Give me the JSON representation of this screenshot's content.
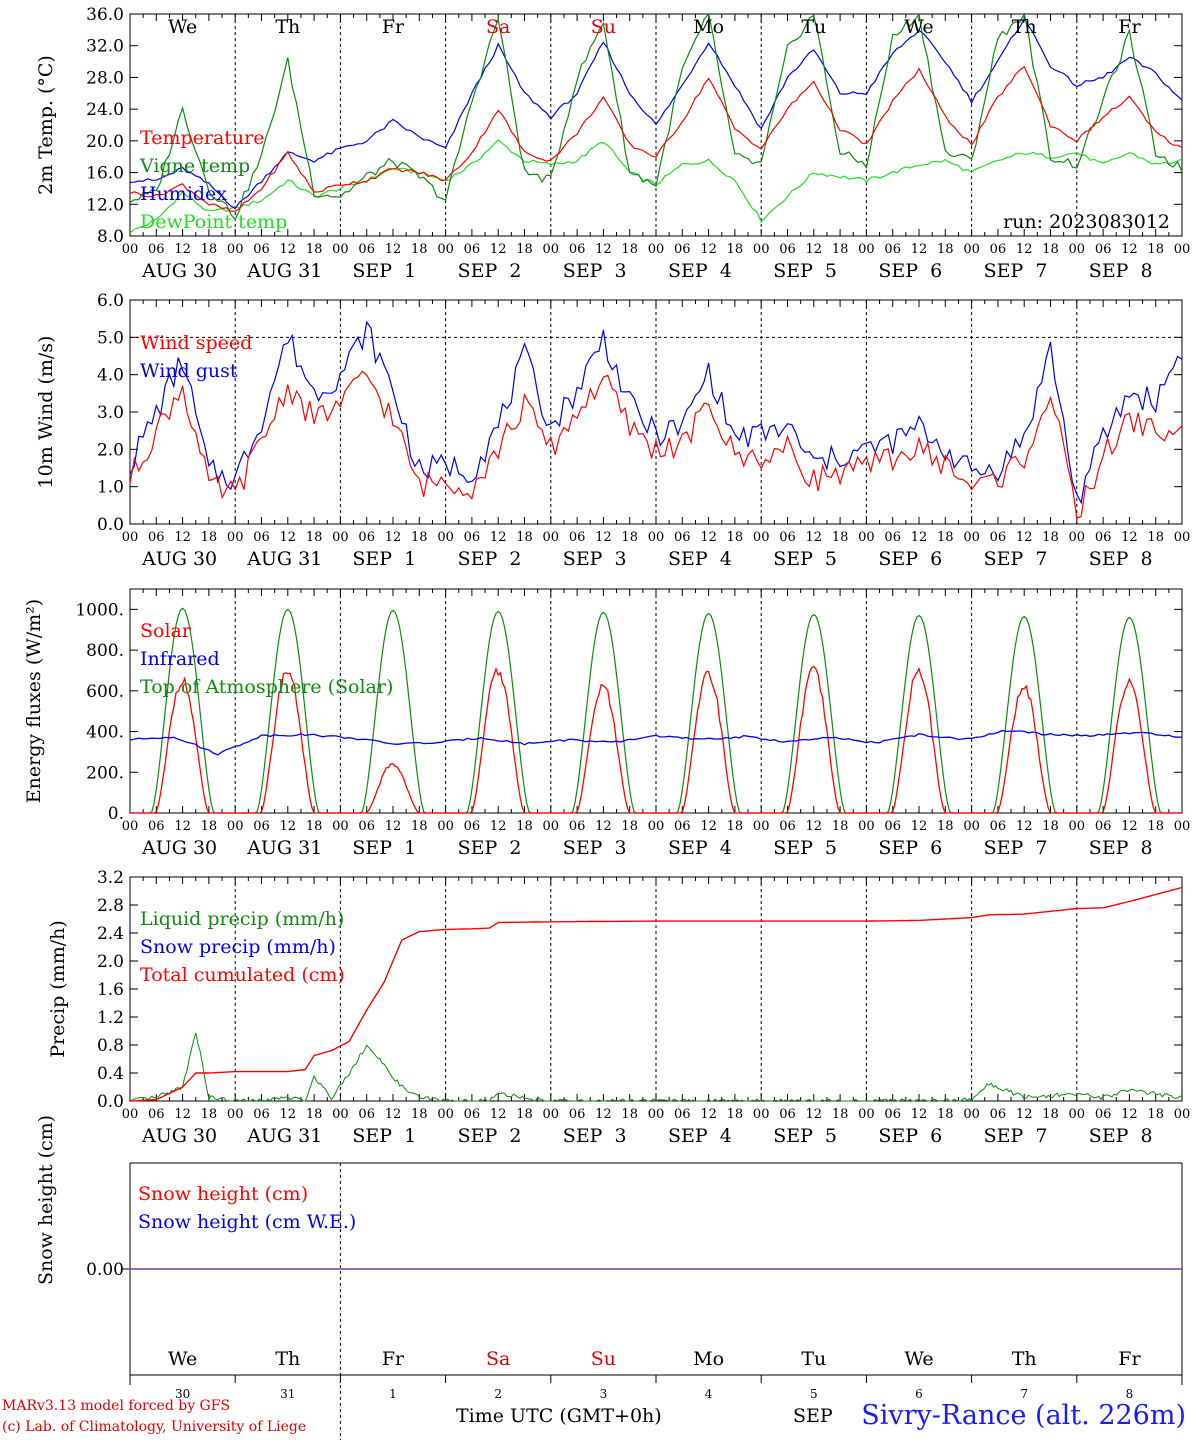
{
  "run_label": "run: 2023083012",
  "weekdays": [
    {
      "label": "We",
      "color": "#000000"
    },
    {
      "label": "Th",
      "color": "#000000"
    },
    {
      "label": "Fr",
      "color": "#000000"
    },
    {
      "label": "Sa",
      "color": "#e00000"
    },
    {
      "label": "Su",
      "color": "#e00000"
    },
    {
      "label": "Mo",
      "color": "#000000"
    },
    {
      "label": "Tu",
      "color": "#000000"
    },
    {
      "label": "We",
      "color": "#000000"
    },
    {
      "label": "Th",
      "color": "#000000"
    },
    {
      "label": "Fr",
      "color": "#000000"
    }
  ],
  "day_numbers": [
    "30",
    "31",
    "1",
    "2",
    "3",
    "4",
    "5",
    "6",
    "7",
    "8"
  ],
  "date_labels": [
    "AUG 30",
    "AUG 31",
    "SEP  1",
    "SEP  2",
    "SEP  3",
    "SEP  4",
    "SEP  5",
    "SEP  6",
    "SEP  7",
    "SEP  8"
  ],
  "hour_ticks": [
    "00",
    "06",
    "12",
    "18"
  ],
  "footer": {
    "model": "MARv3.13 model forced by GFS",
    "copyright": "(c) Lab. of Climatology, University of Liege",
    "xlabel": "Time UTC (GMT+0h)",
    "month_label": "SEP",
    "site": "Sivry-Rance (alt. 226m)"
  },
  "colors": {
    "red": "#ff0000",
    "blue": "#0000ee",
    "dark_green": "#118811",
    "light_green": "#22dd22",
    "purple": "#7a3a9a"
  },
  "chart_data": [
    {
      "type": "line",
      "ylabel": "2m Temp. (°C)",
      "ylim": [
        8,
        36
      ],
      "yticks": [
        "8.0",
        "12.0",
        "16.0",
        "20.0",
        "24.0",
        "28.0",
        "32.0",
        "36.0"
      ],
      "x_hours": [
        0,
        6,
        12,
        18,
        24,
        30,
        36,
        42,
        48,
        54,
        60,
        66,
        72,
        78,
        84,
        90,
        96,
        102,
        108,
        114,
        120,
        126,
        132,
        138,
        144,
        150,
        156,
        162,
        168,
        174,
        180,
        186,
        192,
        198,
        204,
        210,
        216,
        222,
        228,
        234,
        240
      ],
      "series": [
        {
          "name": "Temperature",
          "color": "red",
          "values": [
            13.5,
            13.0,
            14.5,
            12.0,
            11.0,
            14.0,
            18.5,
            13.5,
            14.5,
            15.0,
            16.5,
            16.0,
            15.0,
            18.5,
            24.0,
            18.5,
            17.5,
            21.0,
            25.5,
            19.5,
            18.0,
            22.5,
            28.0,
            21.5,
            19.0,
            24.0,
            27.5,
            21.5,
            19.5,
            25.0,
            29.0,
            23.0,
            19.5,
            25.5,
            29.5,
            22.0,
            20.0,
            23.0,
            25.5,
            21.0,
            19.0
          ]
        },
        {
          "name": "Vigne temp",
          "color": "dark_green",
          "values": [
            12.5,
            13.5,
            24.0,
            14.0,
            10.5,
            18.0,
            30.0,
            13.5,
            13.0,
            15.5,
            17.5,
            15.5,
            12.5,
            25.0,
            35.5,
            16.0,
            15.0,
            28.0,
            35.0,
            16.0,
            14.5,
            29.0,
            36.0,
            18.0,
            17.0,
            31.5,
            36.0,
            18.5,
            17.0,
            33.0,
            36.0,
            18.5,
            17.5,
            33.0,
            36.0,
            18.0,
            17.0,
            25.0,
            33.5,
            18.5,
            16.5
          ]
        },
        {
          "name": "Humidex",
          "color": "blue",
          "values": [
            15.0,
            15.0,
            16.5,
            14.5,
            11.5,
            15.0,
            18.5,
            17.5,
            19.0,
            20.0,
            22.5,
            20.5,
            19.0,
            26.0,
            32.0,
            26.0,
            23.0,
            26.0,
            32.5,
            26.0,
            22.0,
            27.0,
            32.5,
            27.0,
            21.5,
            28.0,
            31.5,
            26.0,
            26.0,
            31.0,
            34.0,
            30.0,
            25.0,
            30.0,
            35.5,
            29.5,
            27.0,
            28.0,
            30.5,
            28.5,
            25.0
          ]
        },
        {
          "name": "DewPoint temp",
          "color": "light_green",
          "values": [
            8.5,
            10.0,
            13.5,
            11.0,
            11.5,
            12.5,
            15.0,
            13.0,
            14.0,
            15.0,
            16.5,
            16.0,
            15.0,
            17.0,
            20.0,
            17.5,
            17.0,
            17.5,
            20.0,
            16.0,
            14.5,
            17.0,
            17.5,
            15.0,
            10.0,
            13.0,
            16.0,
            15.5,
            15.0,
            16.0,
            17.0,
            17.5,
            16.0,
            17.5,
            18.5,
            18.0,
            18.5,
            17.0,
            18.5,
            17.0,
            17.5
          ]
        }
      ]
    },
    {
      "type": "line",
      "ylabel": "10m Wind (m/s)",
      "ylim": [
        0,
        6
      ],
      "yticks": [
        "0.0",
        "1.0",
        "2.0",
        "3.0",
        "4.0",
        "5.0",
        "6.0"
      ],
      "x_hours": [
        0,
        6,
        12,
        18,
        24,
        30,
        36,
        42,
        48,
        54,
        60,
        66,
        72,
        78,
        84,
        90,
        96,
        102,
        108,
        114,
        120,
        126,
        132,
        138,
        144,
        150,
        156,
        162,
        168,
        174,
        180,
        186,
        192,
        198,
        204,
        210,
        216,
        222,
        228,
        234,
        240
      ],
      "series": [
        {
          "name": "Wind speed",
          "color": "red",
          "values": [
            1.2,
            2.5,
            3.7,
            1.0,
            0.8,
            2.2,
            3.7,
            2.8,
            3.2,
            4.0,
            2.8,
            1.0,
            1.2,
            1.0,
            2.0,
            3.2,
            2.0,
            3.0,
            3.9,
            2.6,
            2.0,
            2.1,
            3.2,
            1.8,
            1.8,
            2.0,
            1.2,
            1.4,
            1.5,
            1.8,
            2.0,
            1.6,
            1.0,
            1.2,
            1.8,
            3.5,
            0.2,
            1.8,
            2.8,
            2.5,
            2.4
          ]
        },
        {
          "name": "Wind gust",
          "color": "blue",
          "values": [
            1.6,
            3.0,
            4.4,
            1.4,
            1.2,
            2.8,
            5.0,
            3.5,
            4.0,
            5.2,
            3.6,
            1.4,
            1.6,
            1.4,
            2.6,
            4.5,
            2.6,
            3.6,
            5.0,
            3.2,
            2.4,
            2.6,
            4.1,
            2.3,
            2.4,
            2.6,
            1.6,
            1.8,
            2.0,
            2.2,
            2.6,
            2.0,
            1.4,
            1.5,
            2.3,
            4.7,
            0.6,
            2.3,
            3.5,
            3.3,
            4.7
          ]
        }
      ],
      "dashed_reference": 5.0
    },
    {
      "type": "line",
      "ylabel": "Energy fluxes (W/m²)",
      "ylim": [
        0,
        1100
      ],
      "yticks": [
        "0.",
        "200.",
        "400.",
        "600.",
        "800.",
        "1000."
      ],
      "series": [
        {
          "name": "Solar",
          "color": "red",
          "daily_peaks": [
            650,
            700,
            240,
            700,
            620,
            690,
            700,
            700,
            620,
            650
          ]
        },
        {
          "name": "Infrared",
          "color": "blue",
          "values": [
            360,
            375,
            290,
            380,
            385,
            370,
            340,
            345,
            370,
            340,
            360,
            345,
            380,
            360,
            375,
            350,
            370,
            345,
            385,
            360,
            405,
            385,
            380,
            395,
            370
          ]
        },
        {
          "name": "Top of Atmosphere (Solar)",
          "color": "dark_green",
          "daily_peaks": [
            1005,
            1000,
            995,
            990,
            985,
            980,
            975,
            970,
            965,
            960
          ]
        }
      ]
    },
    {
      "type": "line",
      "ylabel": "Precip (mm/h)",
      "ylim": [
        0,
        3.2
      ],
      "yticks": [
        "0.0",
        "0.4",
        "0.8",
        "1.2",
        "1.6",
        "2.0",
        "2.4",
        "2.8",
        "3.2"
      ],
      "x_hours": [
        0,
        6,
        12,
        15,
        18,
        24,
        30,
        36,
        40,
        42,
        46,
        50,
        54,
        58,
        62,
        66,
        72,
        78,
        82,
        84,
        96,
        120,
        144,
        168,
        180,
        192,
        196,
        204,
        216,
        222,
        228,
        234,
        240
      ],
      "series": [
        {
          "name": "Liquid precip (mm/h)",
          "color": "dark_green",
          "values": [
            0,
            0.05,
            0.2,
            1.0,
            0.05,
            0,
            0,
            0.05,
            0,
            0.35,
            0.05,
            0.4,
            0.8,
            0.5,
            0.2,
            0.05,
            0,
            0,
            0,
            0.1,
            0,
            0,
            0,
            0,
            0,
            0.02,
            0.25,
            0.05,
            0.1,
            0.05,
            0.15,
            0.1,
            0.05
          ]
        },
        {
          "name": "Snow precip (mm/h)",
          "color": "blue",
          "values": []
        },
        {
          "name": "Total cumulated (cm)",
          "color": "red",
          "values": [
            0,
            0.02,
            0.2,
            0.4,
            0.4,
            0.42,
            0.42,
            0.42,
            0.45,
            0.65,
            0.72,
            0.85,
            1.3,
            1.7,
            2.3,
            2.42,
            2.45,
            2.46,
            2.47,
            2.55,
            2.56,
            2.57,
            2.57,
            2.57,
            2.58,
            2.62,
            2.66,
            2.67,
            2.75,
            2.76,
            2.85,
            2.95,
            3.05
          ]
        }
      ]
    },
    {
      "type": "line",
      "ylabel": "Snow height (cm)",
      "yticks": [
        "0.00"
      ],
      "series": [
        {
          "name": "Snow height (cm)",
          "color": "red",
          "values": [
            0,
            0
          ]
        },
        {
          "name": "Snow height (cm W.E.)",
          "color": "blue",
          "values": [
            0,
            0
          ]
        }
      ]
    }
  ]
}
